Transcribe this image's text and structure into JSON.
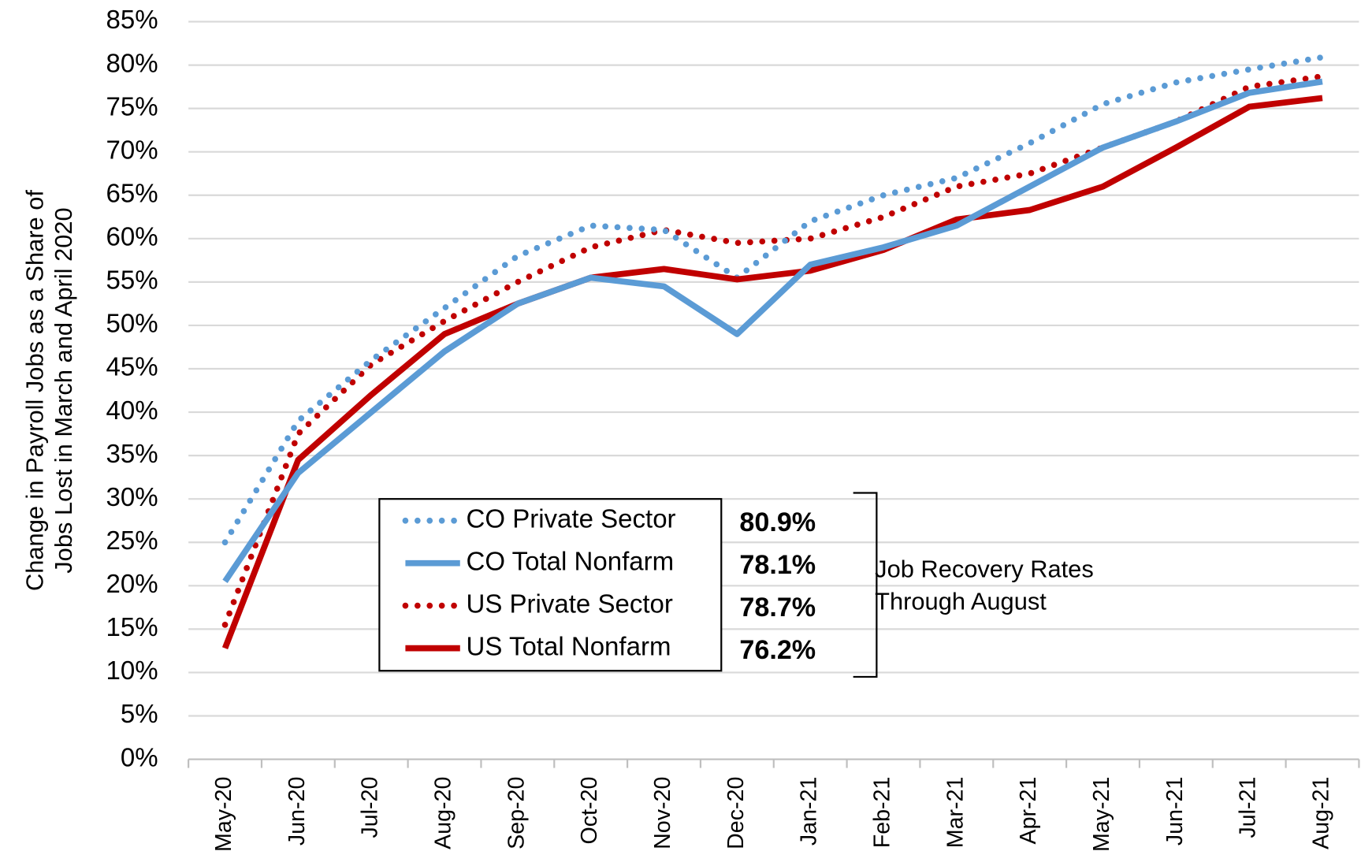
{
  "chart_data": {
    "type": "line",
    "y_label": [
      "Change in Payroll Jobs as a Share of",
      "Jobs Lost in March and April 2020"
    ],
    "categories": [
      "May-20",
      "Jun-20",
      "Jul-20",
      "Aug-20",
      "Sep-20",
      "Oct-20",
      "Nov-20",
      "Dec-20",
      "Jan-21",
      "Feb-21",
      "Mar-21",
      "Apr-21",
      "May-21",
      "Jun-21",
      "Jul-21",
      "Aug-21"
    ],
    "series": [
      {
        "name": "CO Private Sector",
        "color": "#5b9bd5",
        "style": "dotted",
        "label": "80.9%",
        "values": [
          25,
          39,
          46,
          52,
          58,
          61.5,
          61,
          55.5,
          62,
          65,
          67,
          71,
          75.5,
          78,
          79.5,
          80.9
        ]
      },
      {
        "name": "CO Total Nonfarm",
        "color": "#5b9bd5",
        "style": "solid",
        "label": "78.1%",
        "values": [
          20.5,
          33,
          40,
          47,
          52.5,
          55.5,
          54.5,
          49,
          57,
          59,
          61.5,
          66,
          70.5,
          73.5,
          76.8,
          78.1
        ]
      },
      {
        "name": "US Private Sector",
        "color": "#c00000",
        "style": "dotted",
        "label": "78.7%",
        "values": [
          15.5,
          37.5,
          45.5,
          50.5,
          55,
          59,
          61,
          59.5,
          60,
          62.5,
          66,
          67.5,
          70.5,
          73.5,
          77.5,
          78.7
        ]
      },
      {
        "name": "US Total Nonfarm",
        "color": "#c00000",
        "style": "solid",
        "label": "76.2%",
        "values": [
          12.8,
          34.5,
          42,
          49,
          52.5,
          55.5,
          56.5,
          55.3,
          56.3,
          58.7,
          62.2,
          63.3,
          66,
          70.5,
          75.2,
          76.2
        ]
      }
    ],
    "annotation": [
      "Job Recovery Rates",
      "Through August"
    ],
    "ylim": [
      0,
      85
    ],
    "yticks": [
      {
        "value": 0,
        "label": "0%"
      },
      {
        "value": 5,
        "label": "5%"
      },
      {
        "value": 10,
        "label": "10%"
      },
      {
        "value": 15,
        "label": "15%"
      },
      {
        "value": 20,
        "label": "20%"
      },
      {
        "value": 25,
        "label": "25%"
      },
      {
        "value": 30,
        "label": "30%"
      },
      {
        "value": 35,
        "label": "35%"
      },
      {
        "value": 40,
        "label": "40%"
      },
      {
        "value": 45,
        "label": "45%"
      },
      {
        "value": 50,
        "label": "50%"
      },
      {
        "value": 55,
        "label": "55%"
      },
      {
        "value": 60,
        "label": "60%"
      },
      {
        "value": 65,
        "label": "65%"
      },
      {
        "value": 70,
        "label": "70%"
      },
      {
        "value": 75,
        "label": "75%"
      },
      {
        "value": 80,
        "label": "80%"
      },
      {
        "value": 85,
        "label": "85%"
      }
    ],
    "grid": true
  }
}
